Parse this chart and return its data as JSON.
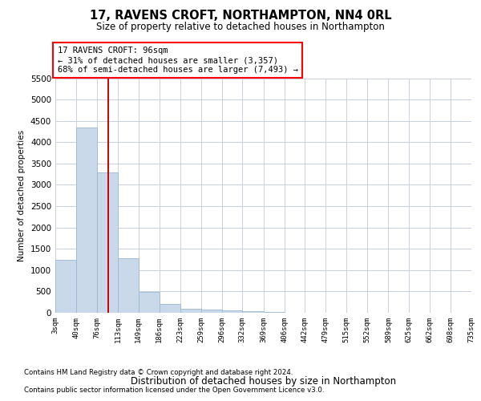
{
  "title": "17, RAVENS CROFT, NORTHAMPTON, NN4 0RL",
  "subtitle": "Size of property relative to detached houses in Northampton",
  "xlabel": "Distribution of detached houses by size in Northampton",
  "ylabel": "Number of detached properties",
  "footnote1": "Contains HM Land Registry data © Crown copyright and database right 2024.",
  "footnote2": "Contains public sector information licensed under the Open Government Licence v3.0.",
  "annotation_line1": "17 RAVENS CROFT: 96sqm",
  "annotation_line2": "← 31% of detached houses are smaller (3,357)",
  "annotation_line3": "68% of semi-detached houses are larger (7,493) →",
  "bar_color": "#c9d9ea",
  "bar_edge_color": "#9ab8d3",
  "grid_color": "#c8d0dc",
  "red_line_color": "#cc0000",
  "categories": [
    "3sqm",
    "40sqm",
    "76sqm",
    "113sqm",
    "149sqm",
    "186sqm",
    "223sqm",
    "259sqm",
    "296sqm",
    "332sqm",
    "369sqm",
    "406sqm",
    "442sqm",
    "479sqm",
    "515sqm",
    "552sqm",
    "589sqm",
    "625sqm",
    "662sqm",
    "698sqm",
    "735sqm"
  ],
  "bin_edges": [
    3,
    40,
    76,
    113,
    149,
    186,
    223,
    259,
    296,
    332,
    369,
    406,
    442,
    479,
    515,
    552,
    589,
    625,
    662,
    698,
    735
  ],
  "values": [
    1250,
    4350,
    3300,
    1280,
    490,
    200,
    100,
    75,
    50,
    30,
    10,
    0,
    0,
    0,
    0,
    0,
    0,
    0,
    0,
    0
  ],
  "ylim": [
    0,
    5500
  ],
  "yticks": [
    0,
    500,
    1000,
    1500,
    2000,
    2500,
    3000,
    3500,
    4000,
    4500,
    5000,
    5500
  ],
  "red_line_x": 96
}
